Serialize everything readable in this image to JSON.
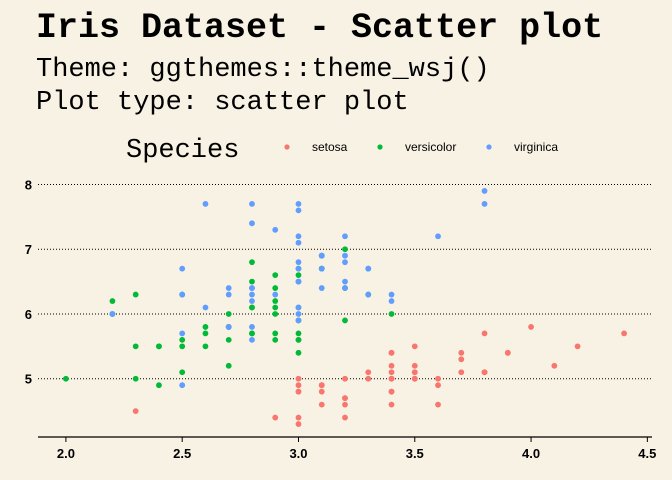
{
  "header": {
    "title": "Iris Dataset - Scatter plot",
    "subtitle_1": "Theme: ggthemes::theme_wsj()",
    "subtitle_2": "Plot type: scatter plot"
  },
  "legend": {
    "title": "Species",
    "position": "top"
  },
  "colors": {
    "background": "#f8f2e4",
    "setosa": "#f8766d",
    "versicolor": "#00ba38",
    "virginica": "#619cff"
  },
  "chart_data": {
    "type": "scatter",
    "xlabel": "",
    "ylabel": "",
    "xlim": [
      1.88,
      4.52
    ],
    "ylim": [
      4.1,
      8.1
    ],
    "x_ticks": [
      2.0,
      2.5,
      3.0,
      3.5,
      4.0,
      4.5
    ],
    "x_tick_labels": [
      "2.0",
      "2.5",
      "3.0",
      "3.5",
      "4.0",
      "4.5"
    ],
    "y_ticks": [
      5,
      6,
      7,
      8
    ],
    "y_tick_labels": [
      "5",
      "6",
      "7",
      "8"
    ],
    "grid": "horizontal dotted",
    "series": [
      {
        "name": "setosa",
        "color": "#f8766d",
        "points": [
          [
            3.5,
            5.1
          ],
          [
            3.0,
            4.9
          ],
          [
            3.2,
            4.7
          ],
          [
            3.1,
            4.6
          ],
          [
            3.6,
            5.0
          ],
          [
            3.9,
            5.4
          ],
          [
            3.4,
            4.6
          ],
          [
            3.4,
            5.0
          ],
          [
            2.9,
            4.4
          ],
          [
            3.1,
            4.9
          ],
          [
            3.7,
            5.4
          ],
          [
            3.4,
            4.8
          ],
          [
            3.0,
            4.8
          ],
          [
            3.0,
            4.3
          ],
          [
            4.0,
            5.8
          ],
          [
            4.4,
            5.7
          ],
          [
            3.9,
            5.4
          ],
          [
            3.5,
            5.1
          ],
          [
            3.8,
            5.7
          ],
          [
            3.8,
            5.1
          ],
          [
            3.4,
            5.4
          ],
          [
            3.7,
            5.1
          ],
          [
            3.6,
            4.6
          ],
          [
            3.3,
            5.1
          ],
          [
            3.4,
            4.8
          ],
          [
            3.0,
            5.0
          ],
          [
            3.4,
            5.0
          ],
          [
            3.5,
            5.2
          ],
          [
            3.4,
            5.2
          ],
          [
            3.2,
            4.7
          ],
          [
            3.1,
            4.8
          ],
          [
            3.4,
            5.4
          ],
          [
            4.1,
            5.2
          ],
          [
            4.2,
            5.5
          ],
          [
            3.1,
            4.9
          ],
          [
            3.2,
            5.0
          ],
          [
            3.5,
            5.5
          ],
          [
            3.6,
            4.9
          ],
          [
            3.0,
            4.4
          ],
          [
            3.4,
            5.1
          ],
          [
            3.5,
            5.0
          ],
          [
            2.3,
            4.5
          ],
          [
            3.2,
            4.4
          ],
          [
            3.5,
            5.0
          ],
          [
            3.8,
            5.1
          ],
          [
            3.0,
            4.8
          ],
          [
            3.8,
            5.1
          ],
          [
            3.2,
            4.6
          ],
          [
            3.7,
            5.3
          ],
          [
            3.3,
            5.0
          ]
        ]
      },
      {
        "name": "versicolor",
        "color": "#00ba38",
        "points": [
          [
            3.2,
            7.0
          ],
          [
            3.2,
            6.4
          ],
          [
            3.1,
            6.9
          ],
          [
            2.3,
            5.5
          ],
          [
            2.8,
            6.5
          ],
          [
            2.8,
            5.7
          ],
          [
            3.3,
            6.3
          ],
          [
            2.4,
            4.9
          ],
          [
            2.9,
            6.6
          ],
          [
            2.7,
            5.2
          ],
          [
            2.0,
            5.0
          ],
          [
            3.0,
            5.9
          ],
          [
            2.2,
            6.0
          ],
          [
            2.9,
            6.1
          ],
          [
            2.9,
            5.6
          ],
          [
            3.1,
            6.7
          ],
          [
            3.0,
            5.6
          ],
          [
            2.7,
            5.8
          ],
          [
            2.2,
            6.2
          ],
          [
            2.5,
            5.6
          ],
          [
            3.2,
            5.9
          ],
          [
            2.8,
            6.1
          ],
          [
            2.5,
            6.3
          ],
          [
            2.8,
            6.1
          ],
          [
            2.9,
            6.4
          ],
          [
            3.0,
            6.6
          ],
          [
            2.8,
            6.8
          ],
          [
            3.0,
            6.7
          ],
          [
            2.9,
            6.0
          ],
          [
            2.6,
            5.7
          ],
          [
            2.4,
            5.5
          ],
          [
            2.4,
            5.5
          ],
          [
            2.7,
            5.8
          ],
          [
            2.7,
            6.0
          ],
          [
            3.0,
            5.4
          ],
          [
            3.4,
            6.0
          ],
          [
            3.1,
            6.7
          ],
          [
            2.3,
            6.3
          ],
          [
            3.0,
            5.6
          ],
          [
            2.5,
            5.5
          ],
          [
            2.6,
            5.5
          ],
          [
            3.0,
            6.1
          ],
          [
            2.6,
            5.8
          ],
          [
            2.3,
            5.0
          ],
          [
            2.7,
            5.6
          ],
          [
            3.0,
            5.7
          ],
          [
            2.9,
            5.7
          ],
          [
            2.9,
            6.2
          ],
          [
            2.5,
            5.1
          ],
          [
            2.8,
            5.7
          ]
        ]
      },
      {
        "name": "virginica",
        "color": "#619cff",
        "points": [
          [
            3.3,
            6.3
          ],
          [
            2.7,
            5.8
          ],
          [
            3.0,
            7.1
          ],
          [
            2.9,
            6.3
          ],
          [
            3.0,
            6.5
          ],
          [
            3.0,
            7.6
          ],
          [
            2.5,
            4.9
          ],
          [
            2.9,
            7.3
          ],
          [
            2.5,
            6.7
          ],
          [
            3.6,
            7.2
          ],
          [
            3.2,
            6.5
          ],
          [
            2.7,
            6.4
          ],
          [
            3.0,
            6.8
          ],
          [
            2.5,
            5.7
          ],
          [
            2.8,
            5.8
          ],
          [
            3.2,
            6.4
          ],
          [
            3.0,
            6.5
          ],
          [
            3.8,
            7.7
          ],
          [
            2.6,
            7.7
          ],
          [
            2.2,
            6.0
          ],
          [
            3.2,
            6.9
          ],
          [
            2.8,
            5.6
          ],
          [
            2.8,
            7.7
          ],
          [
            2.7,
            6.3
          ],
          [
            3.3,
            6.7
          ],
          [
            3.2,
            7.2
          ],
          [
            2.8,
            6.2
          ],
          [
            3.0,
            6.1
          ],
          [
            2.8,
            6.4
          ],
          [
            3.0,
            7.2
          ],
          [
            2.8,
            7.4
          ],
          [
            3.8,
            7.9
          ],
          [
            2.8,
            6.4
          ],
          [
            2.8,
            6.3
          ],
          [
            2.6,
            6.1
          ],
          [
            3.0,
            7.7
          ],
          [
            3.4,
            6.3
          ],
          [
            3.1,
            6.4
          ],
          [
            3.0,
            6.0
          ],
          [
            3.1,
            6.9
          ],
          [
            3.1,
            6.7
          ],
          [
            3.1,
            6.9
          ],
          [
            2.7,
            5.8
          ],
          [
            3.2,
            6.8
          ],
          [
            3.3,
            6.7
          ],
          [
            3.0,
            6.7
          ],
          [
            2.5,
            6.3
          ],
          [
            3.0,
            6.5
          ],
          [
            3.4,
            6.2
          ],
          [
            3.0,
            5.9
          ]
        ]
      }
    ]
  }
}
